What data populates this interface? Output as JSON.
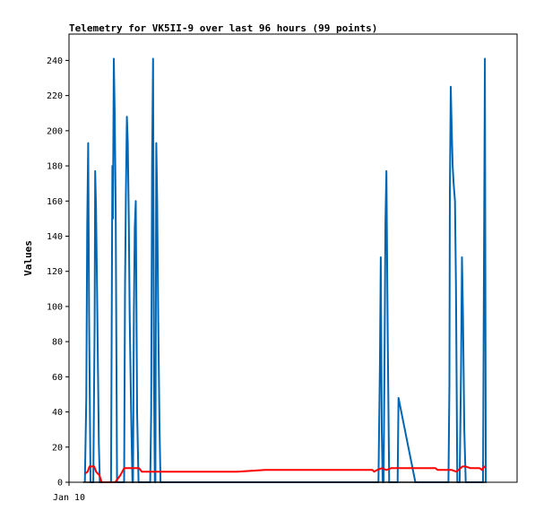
{
  "chart_data": {
    "type": "line",
    "title": "Telemetry for VK5II-9 over last 96 hours (99 points)",
    "xlabel": "",
    "ylabel": "Values",
    "ylim": [
      0,
      255
    ],
    "y_ticks": [
      0,
      20,
      40,
      60,
      80,
      100,
      120,
      140,
      160,
      180,
      200,
      220,
      240
    ],
    "x_tick_labels": [
      "Jan 10"
    ],
    "x_range_hours": [
      0,
      96
    ],
    "grid": false,
    "legend": "none",
    "series": [
      {
        "color": "#0066b3",
        "points": [
          [
            3.4,
            0
          ],
          [
            3.7,
            48
          ],
          [
            3.9,
            145
          ],
          [
            4.1,
            193
          ],
          [
            4.3,
            96
          ],
          [
            4.6,
            0
          ],
          [
            5.2,
            0
          ],
          [
            5.5,
            90
          ],
          [
            5.6,
            177
          ],
          [
            5.8,
            155
          ],
          [
            6.0,
            110
          ],
          [
            6.2,
            65
          ],
          [
            6.4,
            22
          ],
          [
            6.6,
            0
          ],
          [
            9.0,
            0
          ],
          [
            9.3,
            180
          ],
          [
            9.4,
            150
          ],
          [
            9.6,
            241
          ],
          [
            9.8,
            210
          ],
          [
            10.0,
            155
          ],
          [
            10.3,
            0
          ],
          [
            11.8,
            0
          ],
          [
            12.0,
            110
          ],
          [
            12.2,
            165
          ],
          [
            12.4,
            208
          ],
          [
            12.6,
            193
          ],
          [
            12.8,
            150
          ],
          [
            13.0,
            95
          ],
          [
            13.3,
            40
          ],
          [
            13.6,
            0
          ],
          [
            13.7,
            0
          ],
          [
            13.9,
            96
          ],
          [
            14.1,
            145
          ],
          [
            14.3,
            160
          ],
          [
            14.6,
            40
          ],
          [
            14.9,
            0
          ],
          [
            17.4,
            0
          ],
          [
            17.6,
            40
          ],
          [
            17.8,
            180
          ],
          [
            18.0,
            241
          ],
          [
            18.2,
            60
          ],
          [
            18.4,
            0
          ],
          [
            18.5,
            0
          ],
          [
            18.7,
            193
          ],
          [
            18.9,
            160
          ],
          [
            19.1,
            96
          ],
          [
            19.4,
            32
          ],
          [
            19.6,
            0
          ],
          [
            66.3,
            0
          ],
          [
            66.6,
            65
          ],
          [
            66.8,
            128
          ],
          [
            67.0,
            30
          ],
          [
            67.2,
            0
          ],
          [
            67.4,
            0
          ],
          [
            67.6,
            70
          ],
          [
            67.8,
            148
          ],
          [
            68.0,
            177
          ],
          [
            68.3,
            80
          ],
          [
            68.6,
            0
          ],
          [
            70.4,
            0
          ],
          [
            70.6,
            48
          ],
          [
            74.2,
            0
          ],
          [
            81.3,
            0
          ],
          [
            81.5,
            55
          ],
          [
            81.6,
            165
          ],
          [
            81.8,
            225
          ],
          [
            82.0,
            200
          ],
          [
            82.2,
            180
          ],
          [
            82.4,
            170
          ],
          [
            82.7,
            160
          ],
          [
            82.9,
            112
          ],
          [
            83.2,
            0
          ],
          [
            83.7,
            0
          ],
          [
            84.0,
            66
          ],
          [
            84.2,
            128
          ],
          [
            84.4,
            96
          ],
          [
            84.7,
            30
          ],
          [
            85.0,
            0
          ],
          [
            88.7,
            0
          ],
          [
            88.9,
            120
          ],
          [
            89.1,
            241
          ],
          [
            89.3,
            0
          ]
        ]
      },
      {
        "color": "#ff0000",
        "points": [
          [
            3.5,
            5
          ],
          [
            4.0,
            6
          ],
          [
            4.4,
            9
          ],
          [
            5.0,
            9
          ],
          [
            5.4,
            9
          ],
          [
            5.8,
            6
          ],
          [
            6.5,
            4
          ],
          [
            7.0,
            0
          ],
          [
            9.9,
            0
          ],
          [
            11.0,
            4
          ],
          [
            11.8,
            8
          ],
          [
            14.2,
            8
          ],
          [
            15.0,
            8
          ],
          [
            15.6,
            6
          ],
          [
            17.0,
            6
          ],
          [
            18.0,
            6
          ],
          [
            22.0,
            6
          ],
          [
            28.0,
            6
          ],
          [
            32.0,
            6
          ],
          [
            36.0,
            6
          ],
          [
            42.0,
            7
          ],
          [
            48.0,
            7
          ],
          [
            54.0,
            7
          ],
          [
            58.0,
            7
          ],
          [
            63.0,
            7
          ],
          [
            64.5,
            7
          ],
          [
            65.0,
            7
          ],
          [
            65.4,
            6
          ],
          [
            66.0,
            7
          ],
          [
            67.0,
            8
          ],
          [
            68.0,
            7
          ],
          [
            69.0,
            8
          ],
          [
            70.0,
            8
          ],
          [
            72.0,
            8
          ],
          [
            76.0,
            8
          ],
          [
            78.5,
            8
          ],
          [
            79.0,
            7
          ],
          [
            82.0,
            7
          ],
          [
            83.0,
            6
          ],
          [
            84.3,
            9
          ],
          [
            85.0,
            9
          ],
          [
            86.0,
            8
          ],
          [
            88.0,
            8
          ],
          [
            88.5,
            7
          ],
          [
            88.9,
            9
          ],
          [
            89.3,
            8
          ]
        ]
      },
      {
        "color": "#000000",
        "points": [
          [
            3.0,
            0
          ],
          [
            15.0,
            0
          ],
          [
            30.0,
            0
          ],
          [
            45.0,
            0
          ],
          [
            60.0,
            0
          ],
          [
            75.0,
            0
          ],
          [
            89.5,
            0
          ]
        ]
      }
    ]
  }
}
